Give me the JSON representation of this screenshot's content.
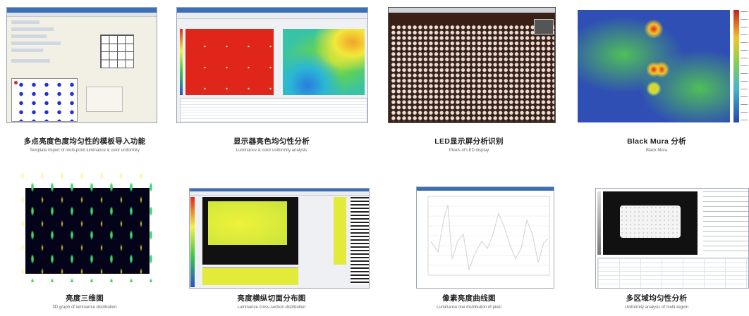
{
  "items": [
    {
      "zh": "多点亮度色度均匀性的模板导入功能",
      "en": "Template import of multi-point luminance & color uniformity"
    },
    {
      "zh": "显示器亮色均匀性分析",
      "en": "Luminance & color uniformity analysis"
    },
    {
      "zh": "LED显示屏分析识别",
      "en": "Pixels of LED display"
    },
    {
      "zh": "Black Mura 分析",
      "en": "Black Mura"
    },
    {
      "zh": "亮度三维图",
      "en": "3D graph of luminance distribution"
    },
    {
      "zh": "亮度横纵切面分布图",
      "en": "Luminance cross-section distribution"
    },
    {
      "zh": "像素亮度曲线图",
      "en": "Luminance line distribution of pixel"
    },
    {
      "zh": "多区域均匀性分析",
      "en": "Uniformity analysis of multi-region"
    }
  ],
  "colors": {
    "heat_red": "#e0261b",
    "heat_yellow": "#f2f23a",
    "mura_blue": "#2f4fb4",
    "mura_green": "#4fbf5a",
    "led_bg": "#3a1f17",
    "led_dot": "#e8dfd6"
  },
  "icons": [
    "window-icon",
    "grid-icon",
    "colorbar-icon"
  ]
}
